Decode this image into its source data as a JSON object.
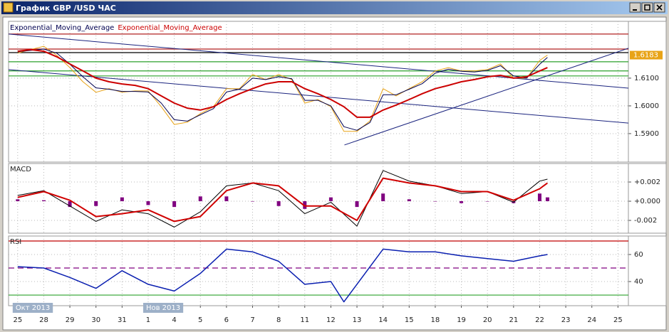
{
  "window": {
    "title": "График GBP /USD  ЧАС"
  },
  "chart_data": [
    {
      "type": "line",
      "x": [
        0,
        0.5,
        1,
        1.5,
        2,
        2.5,
        3,
        3.5,
        4,
        4.5,
        5,
        5.5,
        6,
        6.5,
        7,
        7.5,
        8,
        8.5,
        9,
        9.5,
        10,
        10.5,
        11,
        11.5,
        12,
        12.5,
        13,
        13.5,
        14,
        14.5,
        15,
        15.5,
        16,
        16.5,
        17,
        17.5,
        18,
        18.5,
        19,
        19.5,
        20,
        20.3
      ],
      "series": [
        {
          "color": "#e8a317",
          "values": [
            1.619,
            1.6203,
            1.6215,
            1.6182,
            1.6138,
            1.6087,
            1.6049,
            1.6062,
            1.6049,
            1.6054,
            1.6054,
            1.5997,
            1.5933,
            1.5941,
            1.5972,
            1.5997,
            1.6062,
            1.6062,
            1.6113,
            1.6095,
            1.6113,
            1.6095,
            1.601,
            1.6023,
            1.5997,
            1.5908,
            1.5908,
            1.5946,
            1.6062,
            1.6036,
            1.6062,
            1.6087,
            1.6126,
            1.6138,
            1.6126,
            1.6126,
            1.6131,
            1.6151,
            1.61,
            1.61,
            1.6164,
            1.6183
          ]
        },
        {
          "name": "Exponential_Moving_Average",
          "color": "#000050",
          "values": [
            1.6195,
            1.62,
            1.6205,
            1.619,
            1.615,
            1.6105,
            1.6065,
            1.606,
            1.6052,
            1.6052,
            1.605,
            1.601,
            1.595,
            1.5945,
            1.5968,
            1.599,
            1.605,
            1.606,
            1.61,
            1.6095,
            1.6105,
            1.6098,
            1.602,
            1.602,
            1.6,
            1.5925,
            1.5912,
            1.594,
            1.604,
            1.604,
            1.606,
            1.608,
            1.6118,
            1.6132,
            1.6125,
            1.6122,
            1.6128,
            1.6145,
            1.6108,
            1.61,
            1.615,
            1.6175
          ]
        },
        {
          "name": "Exponential_Moving_Average",
          "color": "#cc0000",
          "width": 2,
          "values": [
            1.6197,
            1.6203,
            1.6197,
            1.6177,
            1.6151,
            1.6126,
            1.61,
            1.6087,
            1.6079,
            1.6074,
            1.6062,
            1.6036,
            1.601,
            1.5992,
            1.5985,
            1.5997,
            1.6023,
            1.6044,
            1.6062,
            1.6079,
            1.6087,
            1.6087,
            1.6062,
            1.6044,
            1.6023,
            1.5997,
            1.5959,
            1.5959,
            1.5985,
            1.6003,
            1.6023,
            1.6044,
            1.6062,
            1.6074,
            1.6087,
            1.6095,
            1.6105,
            1.611,
            1.61,
            1.6105,
            1.6126,
            1.6138
          ]
        }
      ],
      "xlim": [
        -0.35,
        23.4
      ],
      "ylim": [
        1.5805,
        1.6269
      ],
      "yticks": [
        {
          "value": 1.61,
          "label": "1.6100"
        },
        {
          "value": 1.6,
          "label": "1.6000"
        },
        {
          "value": 1.59,
          "label": "1.5900"
        }
      ],
      "hlines": [
        {
          "value": 1.6259,
          "color": "#b22222"
        },
        {
          "value": 1.6205,
          "color": "#b22222"
        },
        {
          "value": 1.6192,
          "color": "#000000"
        },
        {
          "value": 1.6159,
          "color": "#2ca02c"
        },
        {
          "value": 1.6126,
          "color": "#2ca02c"
        },
        {
          "value": 1.6108,
          "color": "#2ca02c"
        }
      ],
      "trendlines": [
        {
          "from": [
            -0.35,
            1.6259
          ],
          "to": [
            23.4,
            1.6064
          ],
          "color": "#1a237e"
        },
        {
          "from": [
            -0.35,
            1.6131
          ],
          "to": [
            23.4,
            1.5938
          ],
          "color": "#1a237e"
        },
        {
          "from": [
            12.52,
            1.5859
          ],
          "to": [
            23.4,
            1.6208
          ],
          "color": "#1a237e"
        }
      ],
      "last_price": {
        "value": 1.6183,
        "label": "1.6183",
        "color": "#e8a317"
      },
      "grid": true
    },
    {
      "type": "line",
      "title": "MACD",
      "x": [
        0,
        1,
        2,
        3,
        4,
        5,
        6,
        7,
        8,
        9,
        10,
        11,
        12,
        13,
        14,
        15,
        16,
        17,
        18,
        19,
        20,
        20.3
      ],
      "series": [
        {
          "kind": "bar",
          "color": "#800080",
          "values": [
            0.0002,
            0.0001,
            -0.0006,
            -0.0005,
            0.0004,
            -0.0004,
            -0.0006,
            0.0005,
            0.0005,
            0,
            -0.0005,
            -0.0008,
            0.0004,
            -0.0006,
            0.0008,
            0.0002,
            0,
            -0.0002,
            0,
            -0.0002,
            0.0008,
            0.0004
          ]
        },
        {
          "color": "#000000",
          "values": [
            0.0006,
            0.0011,
            -0.0005,
            -0.0021,
            -0.0009,
            -0.0013,
            -0.0027,
            -0.0011,
            0.0016,
            0.0019,
            0.0011,
            -0.0013,
            -0.0001,
            -0.0026,
            0.0032,
            0.0021,
            0.0016,
            0.0008,
            0.001,
            -0.0001,
            0.0021,
            0.0023
          ]
        },
        {
          "color": "#d00000",
          "width": 2,
          "values": [
            0.0004,
            0.001,
            0.0001,
            -0.0016,
            -0.0013,
            -0.0009,
            -0.0021,
            -0.0016,
            0.0011,
            0.0019,
            0.0016,
            -0.0005,
            -0.0005,
            -0.002,
            0.0024,
            0.0019,
            0.0016,
            0.001,
            0.001,
            0.0001,
            0.0013,
            0.0019
          ]
        }
      ],
      "xlim": [
        -0.35,
        23.4
      ],
      "ylim": [
        -0.00311,
        0.00378
      ],
      "yticks": [
        {
          "value": 0.002,
          "label": "+0.002"
        },
        {
          "value": 0,
          "label": "+0.000"
        },
        {
          "value": -0.002,
          "label": "-0.002"
        }
      ],
      "grid": true
    },
    {
      "type": "line",
      "title": "RSI",
      "x": [
        0,
        1,
        2,
        3,
        4,
        5,
        6,
        7,
        8,
        9,
        10,
        11,
        12,
        12.5,
        13,
        14,
        15,
        16,
        17,
        18,
        19,
        20,
        20.3
      ],
      "series": [
        {
          "color": "#0a1fb0",
          "width": 1.5,
          "values": [
            51,
            50,
            43,
            35,
            48,
            38,
            33,
            46,
            64,
            62,
            55,
            38,
            40,
            25,
            38,
            64,
            62,
            62,
            59,
            57,
            55,
            59,
            60
          ]
        }
      ],
      "xlim": [
        -0.35,
        23.4
      ],
      "ylim": [
        23.2,
        72.1
      ],
      "yticks": [
        60,
        40
      ],
      "hlines": [
        {
          "value": 70,
          "color": "#c00000"
        },
        {
          "value": 50,
          "color": "#800080",
          "style": "dashed"
        },
        {
          "value": 30,
          "color": "#2ca02c"
        }
      ],
      "xticks": [
        {
          "value": 0,
          "label": "25"
        },
        {
          "value": 1,
          "label": "28"
        },
        {
          "value": 2,
          "label": "29"
        },
        {
          "value": 3,
          "label": "30"
        },
        {
          "value": 4,
          "label": "31"
        },
        {
          "value": 5,
          "label": "1"
        },
        {
          "value": 6,
          "label": "4"
        },
        {
          "value": 7,
          "label": "5"
        },
        {
          "value": 8,
          "label": "6"
        },
        {
          "value": 9,
          "label": "7"
        },
        {
          "value": 10,
          "label": "8"
        },
        {
          "value": 11,
          "label": "11"
        },
        {
          "value": 12,
          "label": "12"
        },
        {
          "value": 13,
          "label": "13"
        },
        {
          "value": 14,
          "label": "14"
        },
        {
          "value": 15,
          "label": "15"
        },
        {
          "value": 16,
          "label": "18"
        },
        {
          "value": 17,
          "label": "19"
        },
        {
          "value": 18,
          "label": "20"
        },
        {
          "value": 19,
          "label": "21"
        },
        {
          "value": 20,
          "label": "22"
        },
        {
          "value": 21,
          "label": "23"
        },
        {
          "value": 22,
          "label": "24"
        },
        {
          "value": 23,
          "label": "25"
        }
      ],
      "period_labels": [
        {
          "value": 0,
          "label": "Окт 2013"
        },
        {
          "value": 5,
          "label": "Нов 2013"
        }
      ],
      "grid": true
    }
  ]
}
